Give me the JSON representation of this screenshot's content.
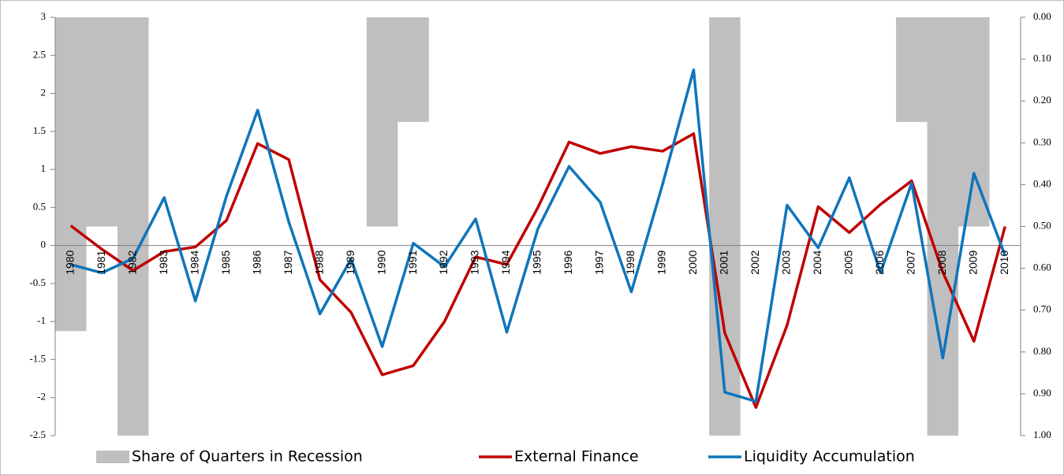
{
  "chart_data": {
    "type": "combo",
    "categories": [
      "1980",
      "1981",
      "1982",
      "1983",
      "1984",
      "1985",
      "1986",
      "1987",
      "1988",
      "1989",
      "1990",
      "1991",
      "1992",
      "1993",
      "1994",
      "1995",
      "1996",
      "1997",
      "1998",
      "1999",
      "2000",
      "2001",
      "2002",
      "2003",
      "2004",
      "2005",
      "2006",
      "2007",
      "2008",
      "2009",
      "2010"
    ],
    "series": [
      {
        "name": "Share of Quarters in Recession",
        "type": "bar",
        "axis": "y2",
        "color": "#bfbfbf",
        "values": [
          0.75,
          0.5,
          1,
          0,
          0,
          0,
          0,
          0,
          0,
          0,
          0.5,
          0.25,
          0,
          0,
          0,
          0,
          0,
          0,
          0,
          0,
          0,
          1,
          0,
          0,
          0,
          0,
          0,
          0.25,
          1,
          0.5,
          0
        ]
      },
      {
        "name": "External Finance",
        "type": "line",
        "color": "#c00000",
        "values": [
          0.26,
          -0.05,
          -0.33,
          -0.08,
          -0.02,
          0.33,
          1.34,
          1.13,
          -0.45,
          -0.88,
          -1.7,
          -1.58,
          -1.0,
          -0.15,
          -0.25,
          0.5,
          1.36,
          1.21,
          1.3,
          1.24,
          1.47,
          -1.15,
          -2.13,
          -1.05,
          0.51,
          0.17,
          0.54,
          0.85,
          -0.35,
          -1.26,
          0.25
        ]
      },
      {
        "name": "Liquidity Accumulation",
        "type": "line",
        "color": "#0f75bc",
        "values": [
          -0.25,
          -0.36,
          -0.17,
          0.63,
          -0.73,
          0.65,
          1.78,
          0.31,
          -0.9,
          -0.18,
          -1.33,
          0.03,
          -0.28,
          0.35,
          -1.14,
          0.22,
          1.04,
          0.57,
          -0.61,
          0.8,
          2.31,
          -1.93,
          -2.05,
          0.53,
          -0.03,
          0.89,
          -0.36,
          0.82,
          -1.48,
          0.95,
          -0.13
        ]
      }
    ],
    "ylim": [
      -2.5,
      3
    ],
    "yticks": [
      -2.5,
      -2,
      -1.5,
      -1,
      -0.5,
      0,
      0.5,
      1,
      1.5,
      2,
      2.5,
      3
    ],
    "y2lim": [
      1,
      0
    ],
    "y2ticks": [
      {
        "value": 0,
        "label": "0.00"
      },
      {
        "value": 0.1,
        "label": "0.10"
      },
      {
        "value": 0.2,
        "label": "0.20"
      },
      {
        "value": 0.3,
        "label": "0.30"
      },
      {
        "value": 0.4,
        "label": "0.40"
      },
      {
        "value": 0.5,
        "label": "0.50"
      },
      {
        "value": 0.6,
        "label": "0.60"
      },
      {
        "value": 0.7,
        "label": "0.70"
      },
      {
        "value": 0.8,
        "label": "0.80"
      },
      {
        "value": 0.9,
        "label": "0.90"
      },
      {
        "value": 1,
        "label": "1.00"
      }
    ],
    "grid": false,
    "legend": "bottom"
  }
}
